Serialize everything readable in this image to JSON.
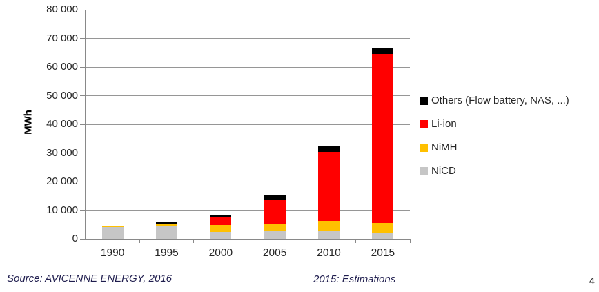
{
  "chart_data": {
    "type": "bar",
    "stacked": true,
    "categories": [
      "1990",
      "1995",
      "2000",
      "2005",
      "2010",
      "2015"
    ],
    "series": [
      {
        "name": "NiCD",
        "color": "#c6c6c6",
        "values": [
          4000,
          4300,
          2500,
          3000,
          2800,
          1900
        ]
      },
      {
        "name": "NiMH",
        "color": "#ffc000",
        "values": [
          350,
          750,
          2400,
          2200,
          3450,
          3700
        ]
      },
      {
        "name": "Li-ion",
        "color": "#ff0000",
        "values": [
          0,
          250,
          2600,
          8200,
          24100,
          59100
        ]
      },
      {
        "name": "Others (Flow battery, NAS, ...)",
        "color": "#000000",
        "values": [
          0,
          400,
          700,
          1700,
          2000,
          2000
        ]
      }
    ],
    "title": "",
    "xlabel": "",
    "ylabel": "MWh",
    "ylim": [
      0,
      80000
    ],
    "ytick_step": 10000,
    "ytick_labels": [
      "0",
      "10 000",
      "20 000",
      "30 000",
      "40 000",
      "50 000",
      "60 000",
      "70 000",
      "80 000"
    ],
    "grid": true,
    "legend_position": "right",
    "legend_order_top_to_bottom": [
      "Others (Flow battery, NAS, ...)",
      "Li-ion",
      "NiMH",
      "NiCD"
    ]
  },
  "footer": {
    "source": "Source: AVICENNE ENERGY, 2016",
    "note": "2015: Estimations",
    "page_number": "4"
  }
}
